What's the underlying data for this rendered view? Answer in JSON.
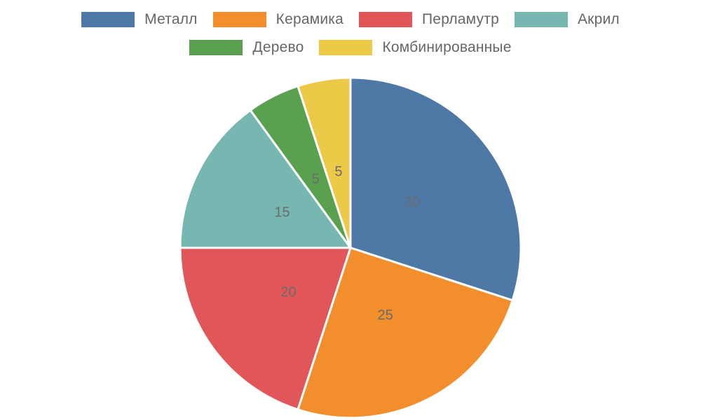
{
  "chart_data": {
    "type": "pie",
    "title": "",
    "categories": [
      "Металл",
      "Керамика",
      "Перламутр",
      "Акрил",
      "Дерево",
      "Комбинированные"
    ],
    "values": [
      30,
      25,
      20,
      15,
      5,
      5
    ],
    "colors": [
      "#4e79a7",
      "#f28e2b",
      "#e15759",
      "#76b7b2",
      "#59a14f",
      "#edc948"
    ],
    "legend_position": "top",
    "data_labels": [
      "30",
      "25",
      "20",
      "15",
      "5",
      "5"
    ]
  }
}
